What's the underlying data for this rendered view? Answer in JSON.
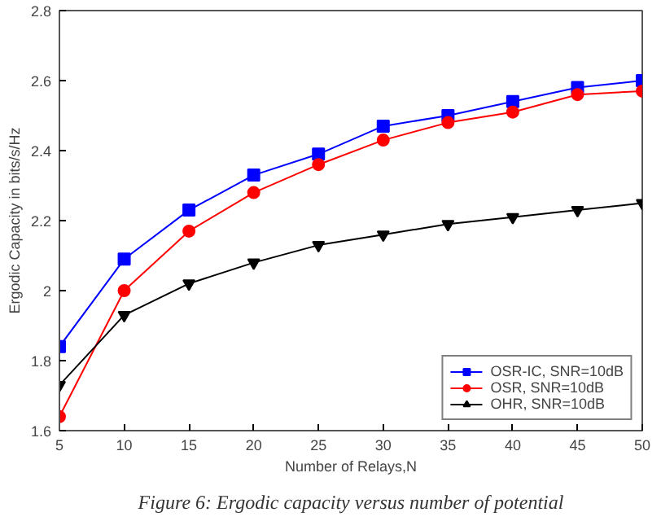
{
  "chart_data": {
    "type": "line",
    "xlabel": "Number of Relays,N",
    "ylabel": "Ergodic Capacity in bits/s/Hz",
    "x": [
      5,
      10,
      15,
      20,
      25,
      30,
      35,
      40,
      45,
      50
    ],
    "series": [
      {
        "name": "OSR-IC, SNR=10dB",
        "color": "#0000ff",
        "marker": "square",
        "values": [
          1.84,
          2.09,
          2.23,
          2.33,
          2.39,
          2.47,
          2.5,
          2.54,
          2.58,
          2.6
        ]
      },
      {
        "name": "OSR, SNR=10dB",
        "color": "#ff0000",
        "marker": "circle",
        "values": [
          1.64,
          2.0,
          2.17,
          2.28,
          2.36,
          2.43,
          2.48,
          2.51,
          2.56,
          2.57
        ]
      },
      {
        "name": "OHR, SNR=10dB",
        "color": "#000000",
        "marker": "triangle",
        "values": [
          1.73,
          1.93,
          2.02,
          2.08,
          2.13,
          2.16,
          2.19,
          2.21,
          2.23,
          2.25
        ]
      }
    ],
    "xlim": [
      5,
      50
    ],
    "xticks": [
      5,
      10,
      15,
      20,
      25,
      30,
      35,
      40,
      45,
      50
    ],
    "ylim": [
      1.6,
      2.8
    ],
    "yticks": [
      1.6,
      1.8,
      2,
      2.2,
      2.4,
      2.6,
      2.8
    ],
    "legend": "bottom right",
    "grid": false,
    "annotations": [
      "Figure 6: Ergodic capacity versus number of potential"
    ]
  }
}
